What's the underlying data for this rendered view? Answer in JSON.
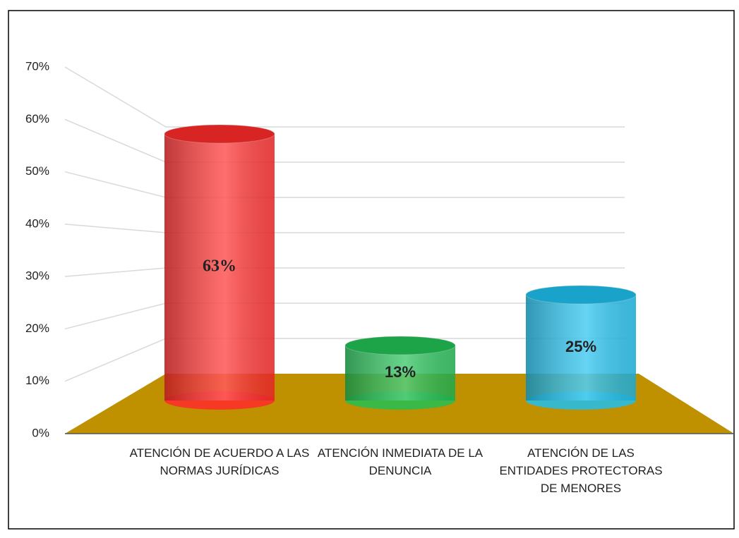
{
  "chart_data": {
    "type": "bar3d-cylinder",
    "categories": [
      "ATENCIÓN DE ACUERDO A LAS NORMAS JURÍDICAS",
      "ATENCIÓN INMEDIATA DE LA DENUNCIA",
      "ATENCIÓN DE LAS ENTIDADES PROTECTORAS DE MENORES"
    ],
    "values": [
      63,
      13,
      25
    ],
    "value_labels": [
      "63%",
      "13%",
      "25%"
    ],
    "colors": [
      "#ff2a2a",
      "#22c055",
      "#1fc0ee"
    ],
    "ylim": [
      0,
      70
    ],
    "yticks": [
      {
        "value": 0,
        "label": "0%"
      },
      {
        "value": 10,
        "label": "10%"
      },
      {
        "value": 20,
        "label": "20%"
      },
      {
        "value": 30,
        "label": "30%"
      },
      {
        "value": 40,
        "label": "40%"
      },
      {
        "value": 50,
        "label": "50%"
      },
      {
        "value": 60,
        "label": "60%"
      },
      {
        "value": 70,
        "label": "70%"
      }
    ],
    "grid": true
  }
}
